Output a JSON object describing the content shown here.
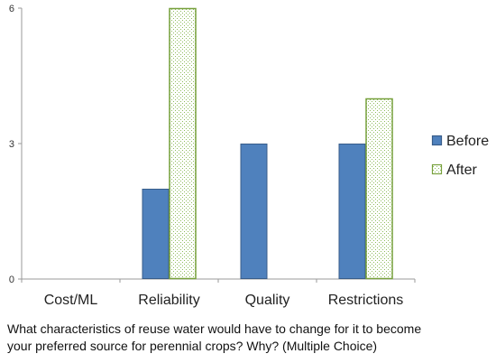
{
  "chart_data": {
    "type": "bar",
    "title": "",
    "xlabel": "",
    "ylabel": "",
    "categories": [
      "Cost/ML",
      "Reliability",
      "Quality",
      "Restrictions"
    ],
    "series": [
      {
        "name": "Before",
        "values": [
          0,
          2,
          3,
          3
        ],
        "fill": "#4f81bd",
        "border": "#385d8a",
        "pattern": "solid"
      },
      {
        "name": "After",
        "values": [
          0,
          6,
          0,
          4
        ],
        "fill": "#ffffff",
        "border": "#77a03c",
        "pattern": "dotted-green"
      }
    ],
    "ylim": [
      0,
      6
    ],
    "yticks": [
      0,
      3,
      6
    ],
    "ytick_labels": [
      "0",
      "3",
      "6"
    ],
    "grid": false,
    "legend_position": "right"
  },
  "caption": {
    "line1": "What characteristics of reuse water would have to change for it to become",
    "line2": "your preferred source for perennial crops? Why? (Multiple Choice)"
  }
}
